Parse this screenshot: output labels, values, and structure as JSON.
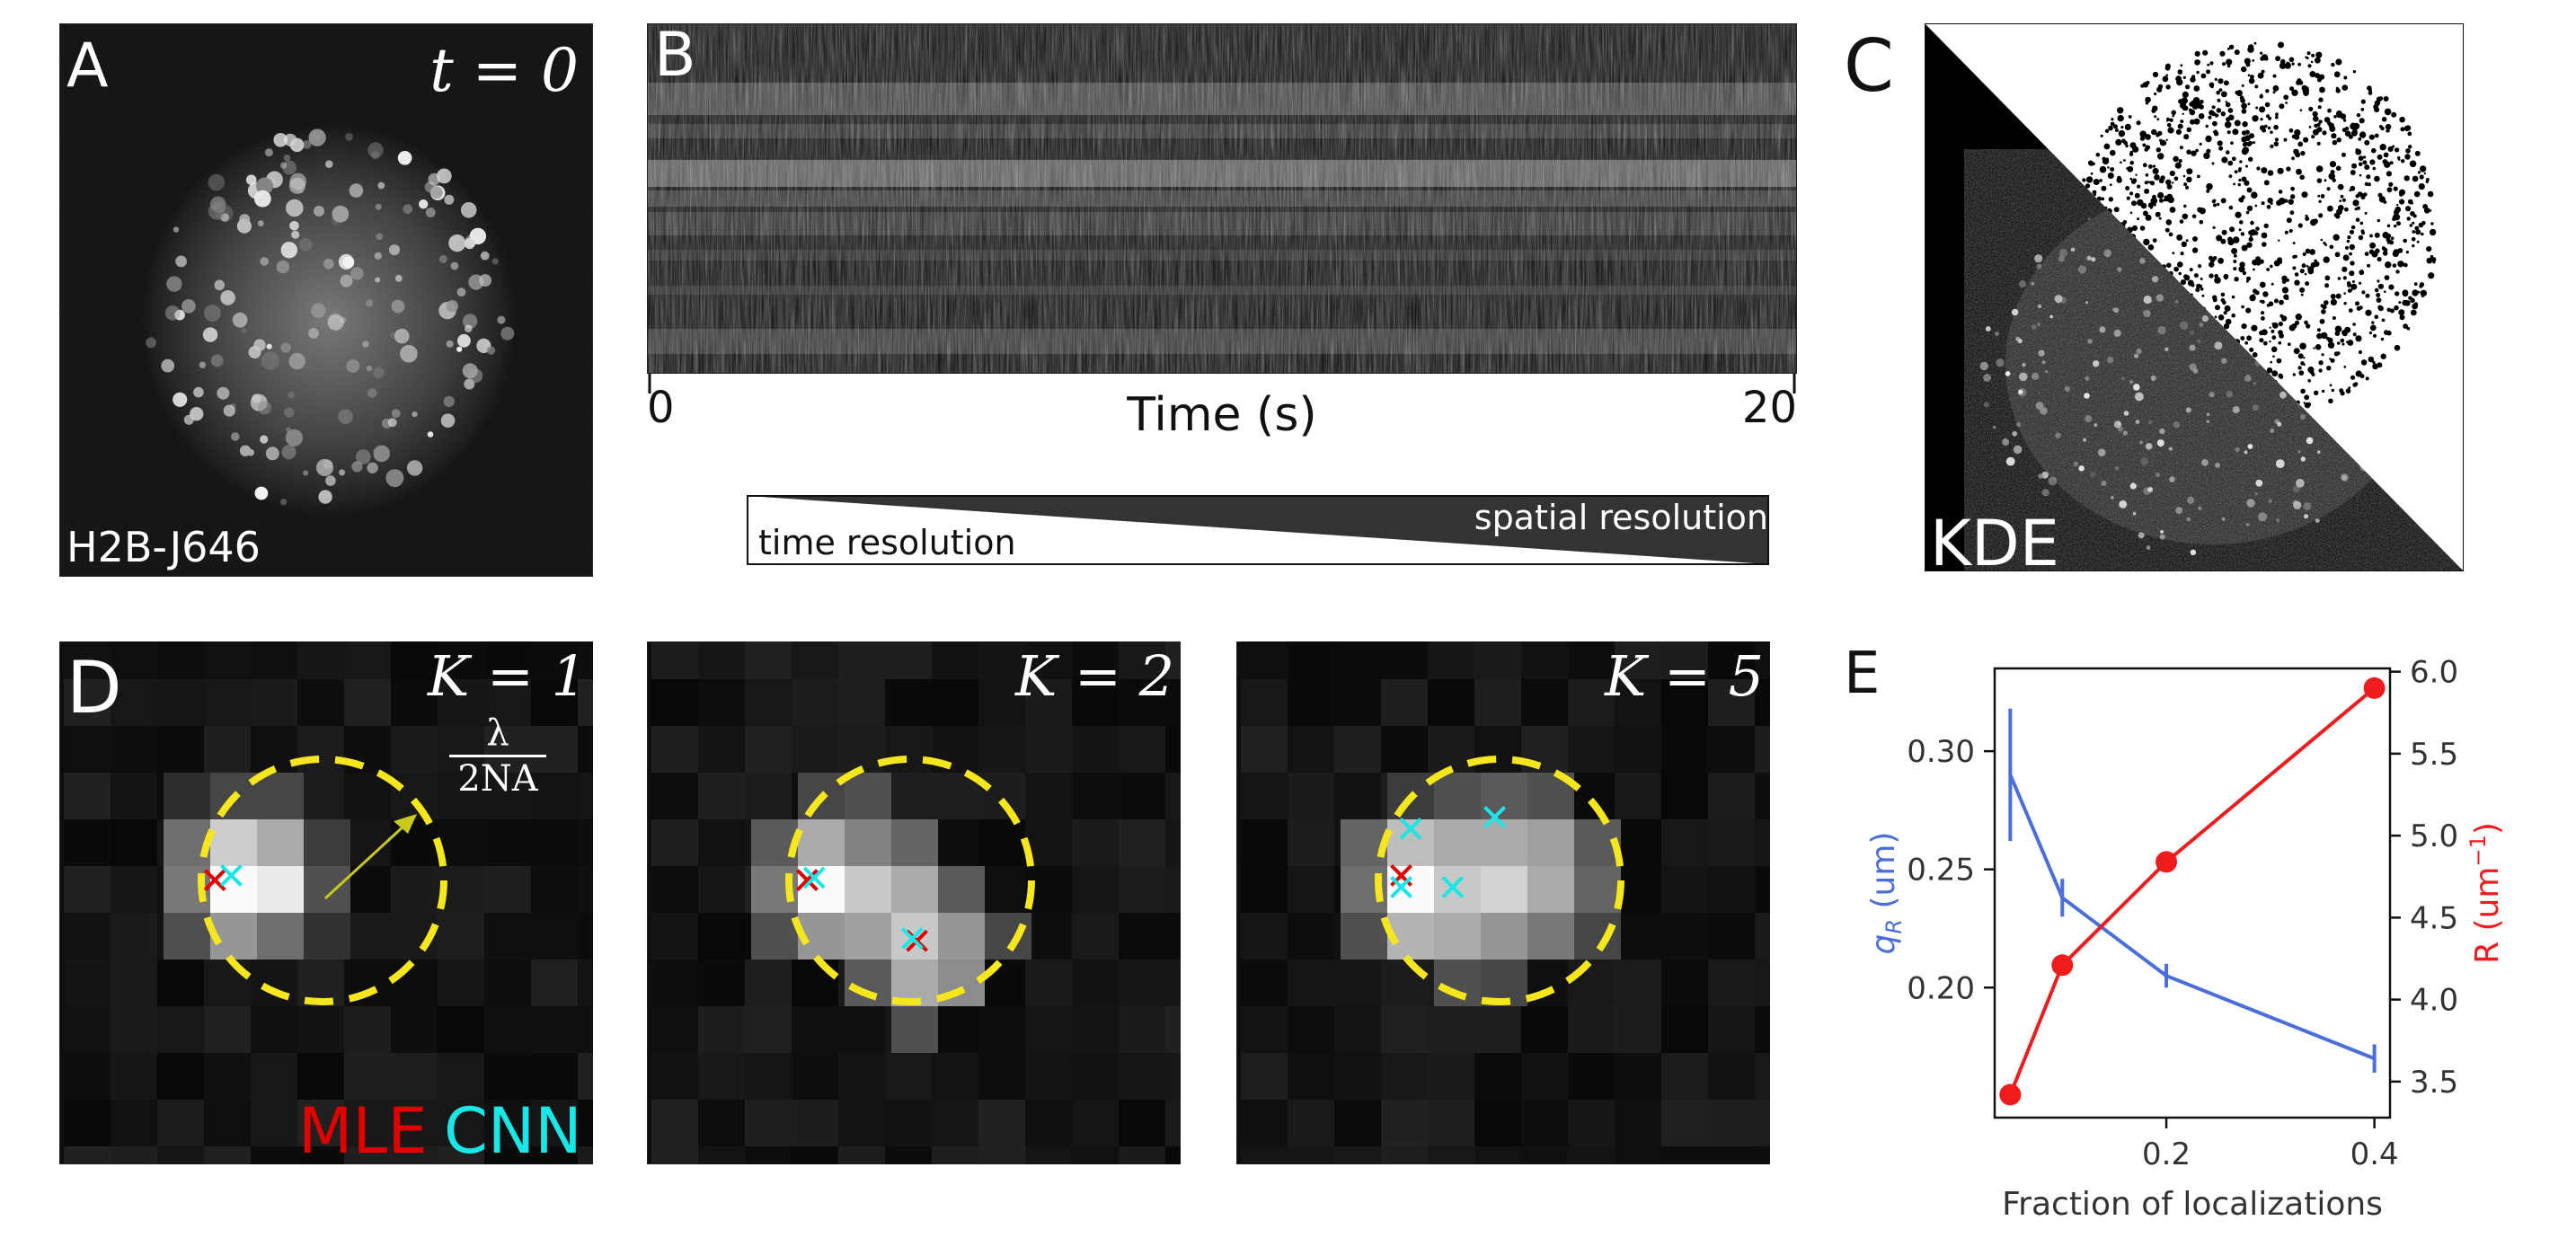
{
  "panel_a": {
    "letter": "A",
    "time_label": "t = 0",
    "stain_label": "H2B-J646"
  },
  "panel_b": {
    "letter": "B",
    "tick_start": "0",
    "tick_end": "20",
    "xlabel": "Time (s)",
    "time_resolution_label": "time resolution",
    "spatial_resolution_label": "spatial resolution"
  },
  "panel_c": {
    "letter": "C",
    "label": "KDE"
  },
  "panel_d": {
    "letter": "D",
    "subpanels": [
      {
        "k_label": "K = 1"
      },
      {
        "k_label": "K = 2"
      },
      {
        "k_label": "K = 5"
      }
    ],
    "lambda_numerator": "λ",
    "lambda_denominator": "2NA",
    "legend_mle": "MLE",
    "legend_cnn": "CNN",
    "colors": {
      "mle": "#e00000",
      "cnn": "#19e6e6",
      "circle": "#f5e61e",
      "arrow": "#c8c81e"
    }
  },
  "panel_e": {
    "letter": "E",
    "chart_data": {
      "type": "line",
      "xlabel": "Fraction of localizations",
      "ylabel_left": "q_R (um)",
      "ylabel_right": "R (um^-1)",
      "x_ticks": [
        "0.2",
        "0.4"
      ],
      "y_left_ticks": [
        "0.20",
        "0.25",
        "0.30"
      ],
      "y_right_ticks": [
        "3.5",
        "4.0",
        "4.5",
        "5.0",
        "5.5",
        "6.0"
      ],
      "xlim": [
        0.035,
        0.415
      ],
      "ylim_left": [
        0.145,
        0.335
      ],
      "ylim_right": [
        3.28,
        6.02
      ],
      "series": [
        {
          "axis": "left",
          "color": "#4a6fdc",
          "marker": "errorbar",
          "x": [
            0.05,
            0.1,
            0.2,
            0.4
          ],
          "y": [
            0.29,
            0.238,
            0.205,
            0.17
          ],
          "err": [
            0.028,
            0.008,
            0.005,
            0.006
          ]
        },
        {
          "axis": "right",
          "color": "#ee1c1c",
          "marker": "circle",
          "x": [
            0.05,
            0.1,
            0.2,
            0.4
          ],
          "y": [
            3.42,
            4.21,
            4.84,
            5.9
          ]
        }
      ]
    }
  }
}
